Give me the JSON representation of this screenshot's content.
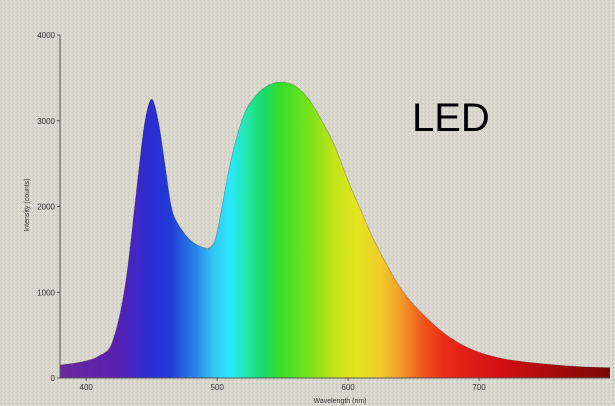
{
  "chart_data": {
    "type": "area",
    "xlabel": "Wavelength (nm)",
    "ylabel": "Intensity (counts)",
    "overlay_label": "LED",
    "xlim": [
      380,
      800
    ],
    "ylim": [
      0,
      4000
    ],
    "x_ticks": [
      400,
      500,
      600,
      700
    ],
    "y_ticks": [
      0,
      1000,
      2000,
      3000,
      4000
    ],
    "fill": "visible-spectrum gradient (violet to dark red)",
    "background": "textured grey-beige",
    "grid": false,
    "series": [
      {
        "x": [
          380,
          390,
          400,
          410,
          420,
          430,
          440,
          445,
          450,
          455,
          460,
          465,
          470,
          480,
          490,
          495,
          500,
          510,
          520,
          530,
          540,
          550,
          560,
          570,
          580,
          590,
          600,
          610,
          620,
          640,
          660,
          680,
          700,
          720,
          740,
          760,
          780,
          800
        ],
        "values": [
          150,
          170,
          200,
          260,
          420,
          1100,
          2400,
          3000,
          3250,
          3000,
          2500,
          2000,
          1800,
          1600,
          1520,
          1530,
          1700,
          2500,
          3050,
          3300,
          3420,
          3450,
          3400,
          3250,
          3000,
          2700,
          2300,
          1950,
          1600,
          1050,
          700,
          450,
          300,
          220,
          180,
          150,
          130,
          120
        ]
      }
    ]
  }
}
